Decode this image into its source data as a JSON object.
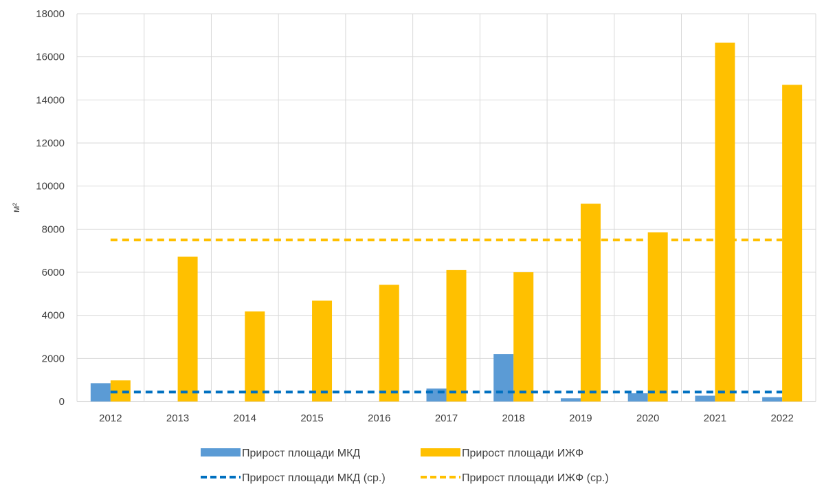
{
  "chart_data": {
    "type": "bar",
    "ylabel": "м²",
    "ylim": [
      0,
      18000
    ],
    "yticks": [
      0,
      2000,
      4000,
      6000,
      8000,
      10000,
      12000,
      14000,
      16000,
      18000
    ],
    "categories": [
      "2012",
      "2013",
      "2014",
      "2015",
      "2016",
      "2017",
      "2018",
      "2019",
      "2020",
      "2021",
      "2022"
    ],
    "grid": true,
    "legend_position": "bottom",
    "series": [
      {
        "name": "Прирост площади МКД",
        "kind": "bar",
        "color": "#5b9bd5",
        "values": [
          850,
          0,
          0,
          0,
          0,
          600,
          2200,
          150,
          380,
          270,
          200
        ]
      },
      {
        "name": "Прирост площади ИЖФ",
        "kind": "bar",
        "color": "#ffc000",
        "values": [
          980,
          6720,
          4180,
          4680,
          5420,
          6100,
          6000,
          9180,
          7850,
          16660,
          14700
        ]
      },
      {
        "name": "Прирост площади МКД (ср.)",
        "kind": "dashed-line",
        "color": "#0070c0",
        "values": [
          440,
          440,
          440,
          440,
          440,
          440,
          440,
          440,
          440,
          440,
          440
        ]
      },
      {
        "name": "Прирост площади ИЖФ (ср.)",
        "kind": "dashed-line",
        "color": "#ffc000",
        "values": [
          7500,
          7500,
          7500,
          7500,
          7500,
          7500,
          7500,
          7500,
          7500,
          7500,
          7500
        ]
      }
    ]
  }
}
